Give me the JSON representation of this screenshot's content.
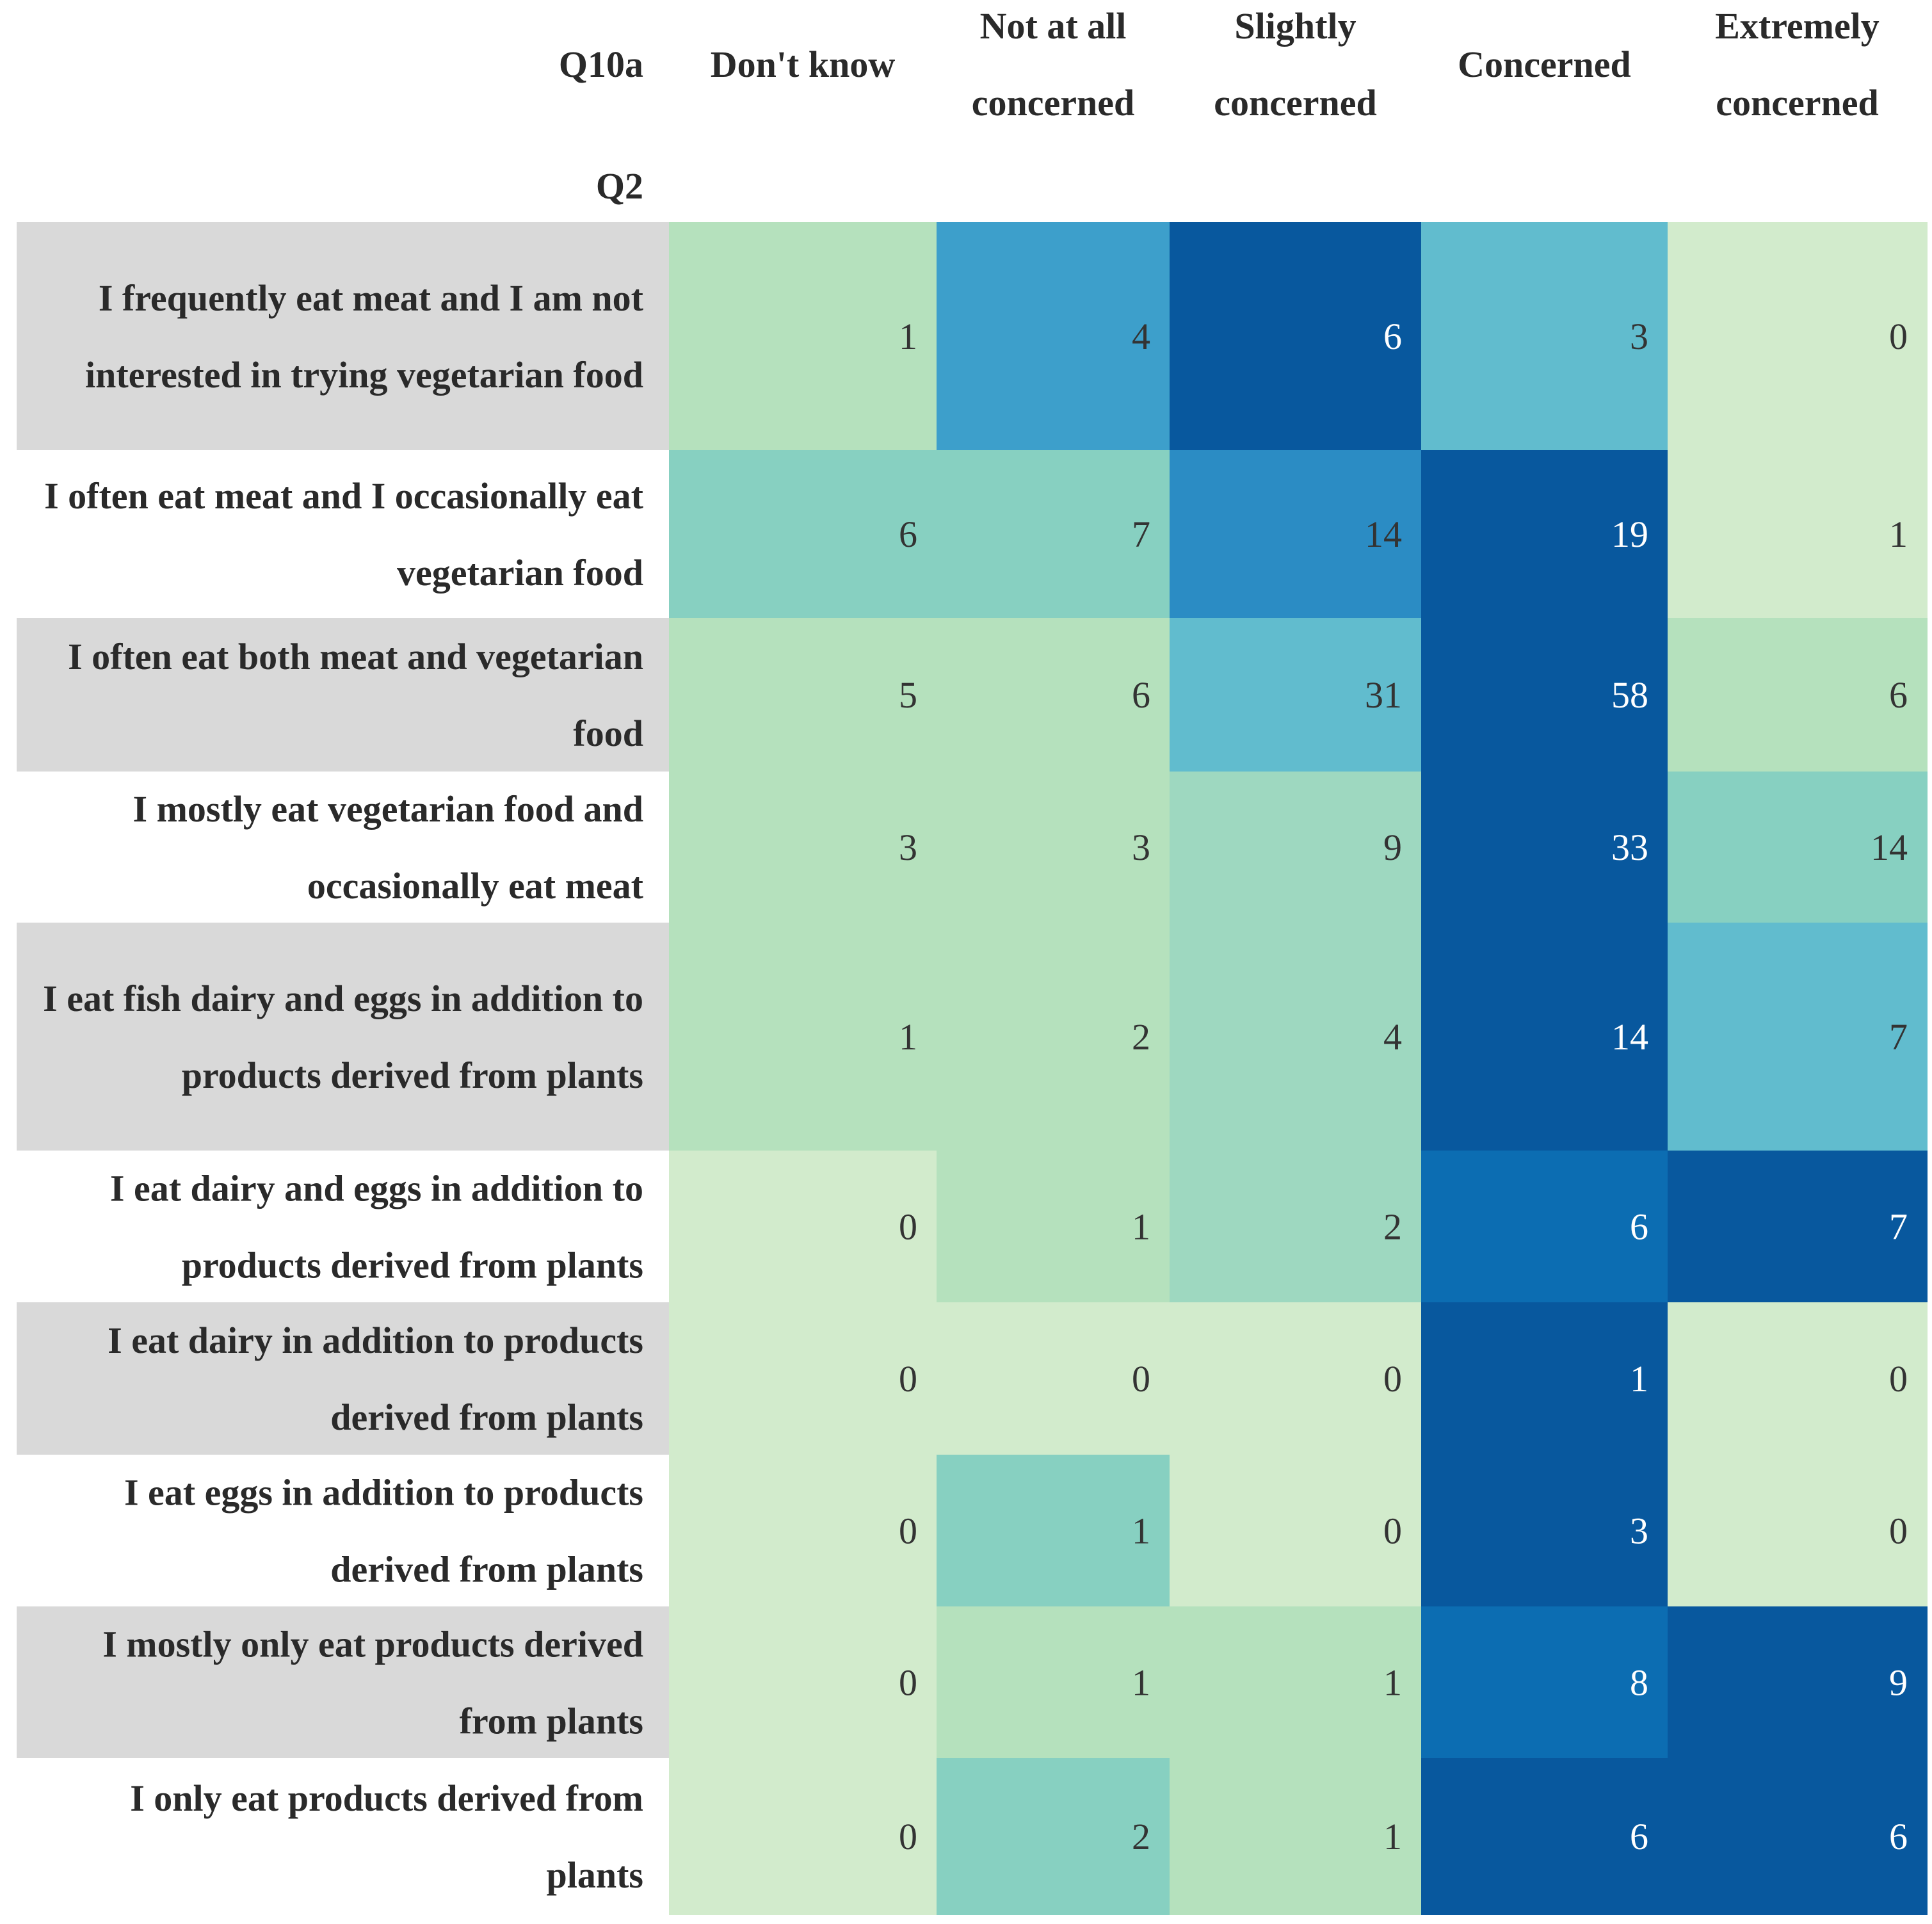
{
  "chart_data": {
    "type": "heatmap",
    "corner_column_label": "Q10a",
    "corner_row_label": "Q2",
    "columns": [
      "Don't know",
      "Not at all concerned",
      "Slightly concerned",
      "Concerned",
      "Extremely concerned"
    ],
    "rows": [
      "I frequently eat meat and I am not interested in trying vegetarian food",
      "I often eat meat and I occasionally eat vegetarian food",
      "I often eat both meat and vegetarian food",
      "I mostly eat vegetarian food and occasionally eat meat",
      "I eat fish dairy and eggs in addition to products derived from plants",
      "I eat dairy and eggs in addition to products derived from plants",
      "I eat dairy in addition to products derived from plants",
      "I eat eggs in addition to products derived from plants",
      "I mostly only eat products derived from plants",
      "I only eat products derived from plants"
    ],
    "values": [
      [
        1,
        4,
        6,
        3,
        0
      ],
      [
        6,
        7,
        14,
        19,
        1
      ],
      [
        5,
        6,
        31,
        58,
        6
      ],
      [
        3,
        3,
        9,
        33,
        14
      ],
      [
        1,
        2,
        4,
        14,
        7
      ],
      [
        0,
        1,
        2,
        6,
        7
      ],
      [
        0,
        0,
        0,
        1,
        0
      ],
      [
        0,
        1,
        0,
        3,
        0
      ],
      [
        0,
        1,
        1,
        8,
        9
      ],
      [
        0,
        2,
        1,
        6,
        6
      ]
    ],
    "color_scale": "row-normalized GnBu",
    "colors": {
      "scale": [
        "#d2ebcc",
        "#b5e1bd",
        "#9ed8c0",
        "#87d0c1",
        "#61bcce",
        "#3d9fcb",
        "#2b8cc4",
        "#0c6db2",
        "#08589e"
      ],
      "label_band": "#d9d9d9",
      "text_dark": "#333333",
      "text_light": "#ffffff"
    }
  }
}
